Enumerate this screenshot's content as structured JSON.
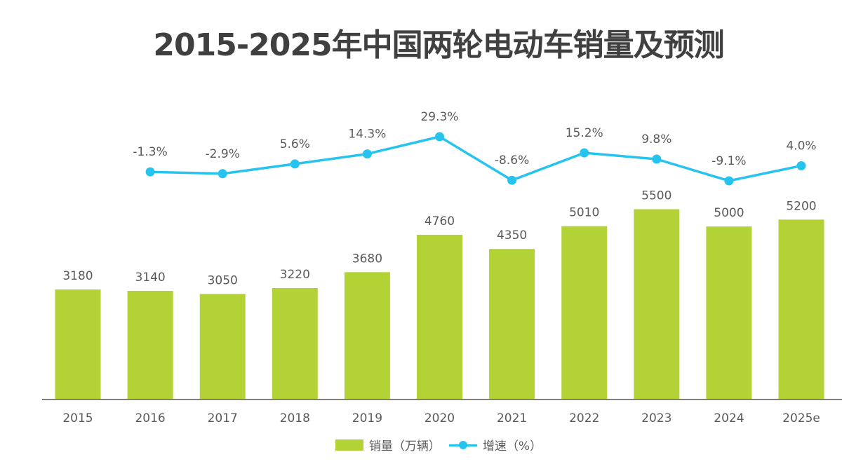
{
  "chart_data": {
    "type": "bar",
    "title": "2015-2025年中国两轮电动车销量及预测",
    "xlabel": "",
    "ylabel": "",
    "categories": [
      "2015",
      "2016",
      "2017",
      "2018",
      "2019",
      "2020",
      "2021",
      "2022",
      "2023",
      "2024",
      "2025e"
    ],
    "series": [
      {
        "name": "销量（万辆）",
        "type": "bar",
        "color": "#b2d235",
        "values": [
          3180,
          3140,
          3050,
          3220,
          3680,
          4760,
          4350,
          5010,
          5500,
          5000,
          5200
        ],
        "labels": [
          "3180",
          "3140",
          "3050",
          "3220",
          "3680",
          "4760",
          "4350",
          "5010",
          "5500",
          "5000",
          "5200"
        ]
      },
      {
        "name": "增速（%）",
        "type": "line",
        "color": "#27c3ef",
        "values": [
          null,
          -1.3,
          -2.9,
          5.6,
          14.3,
          29.3,
          -8.6,
          15.2,
          9.8,
          -9.1,
          4.0
        ],
        "labels": [
          null,
          "-1.3%",
          "-2.9%",
          "5.6%",
          "14.3%",
          "29.3%",
          "-8.6%",
          "15.2%",
          "9.8%",
          "-9.1%",
          "4.0%"
        ]
      }
    ],
    "ylim": [
      0,
      6000
    ],
    "growth_range": [
      -9.1,
      29.3
    ],
    "grid": false,
    "legend": "bottom-center"
  },
  "legend": {
    "bar_label": "销量（万辆）",
    "line_label": "增速（%）"
  }
}
